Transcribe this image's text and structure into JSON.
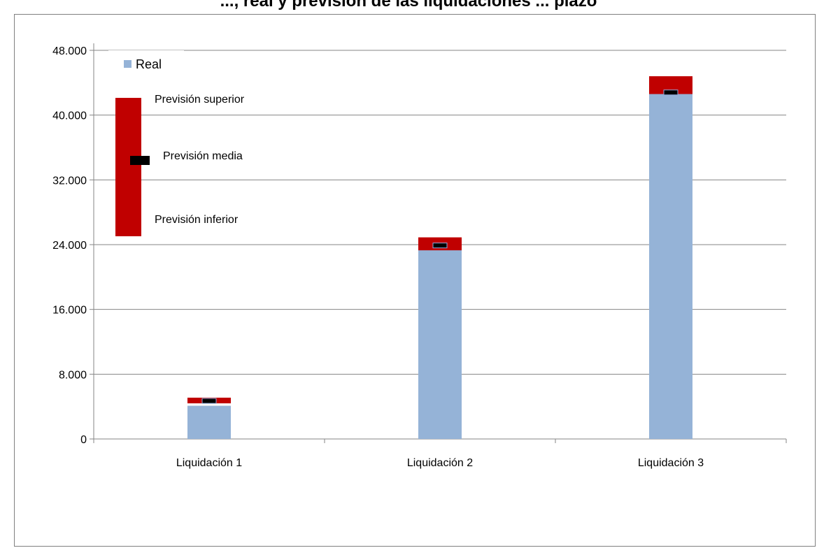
{
  "chart_data": {
    "type": "bar",
    "title": "..., real y previsión de las liquidaciones ... plazo",
    "categories": [
      "Liquidación 1",
      "Liquidación 2",
      "Liquidación 3"
    ],
    "series": [
      {
        "name": "Real",
        "values": [
          4100,
          23300,
          42600
        ]
      },
      {
        "name": "Previsión inferior",
        "values": [
          4400,
          22900,
          41000
        ]
      },
      {
        "name": "Previsión superior",
        "values": [
          5100,
          24900,
          44800
        ]
      },
      {
        "name": "Previsión media",
        "values": [
          4700,
          23900,
          42800
        ]
      }
    ],
    "ylim": [
      0,
      48000
    ],
    "yticks": [
      0,
      8000,
      16000,
      24000,
      32000,
      40000,
      48000
    ],
    "ytick_labels": [
      "0",
      "8.000",
      "16.000",
      "24.000",
      "32.000",
      "40.000",
      "48.000"
    ],
    "grid": true,
    "legend": {
      "position": "top-left",
      "entries": [
        "Real",
        "Previsión superior",
        "Previsión media",
        "Previsión inferior"
      ]
    },
    "colors": {
      "real": "#95b3d7",
      "range": "#c00000",
      "mean": "#000000",
      "grid": "#868686",
      "axis": "#868686"
    }
  }
}
